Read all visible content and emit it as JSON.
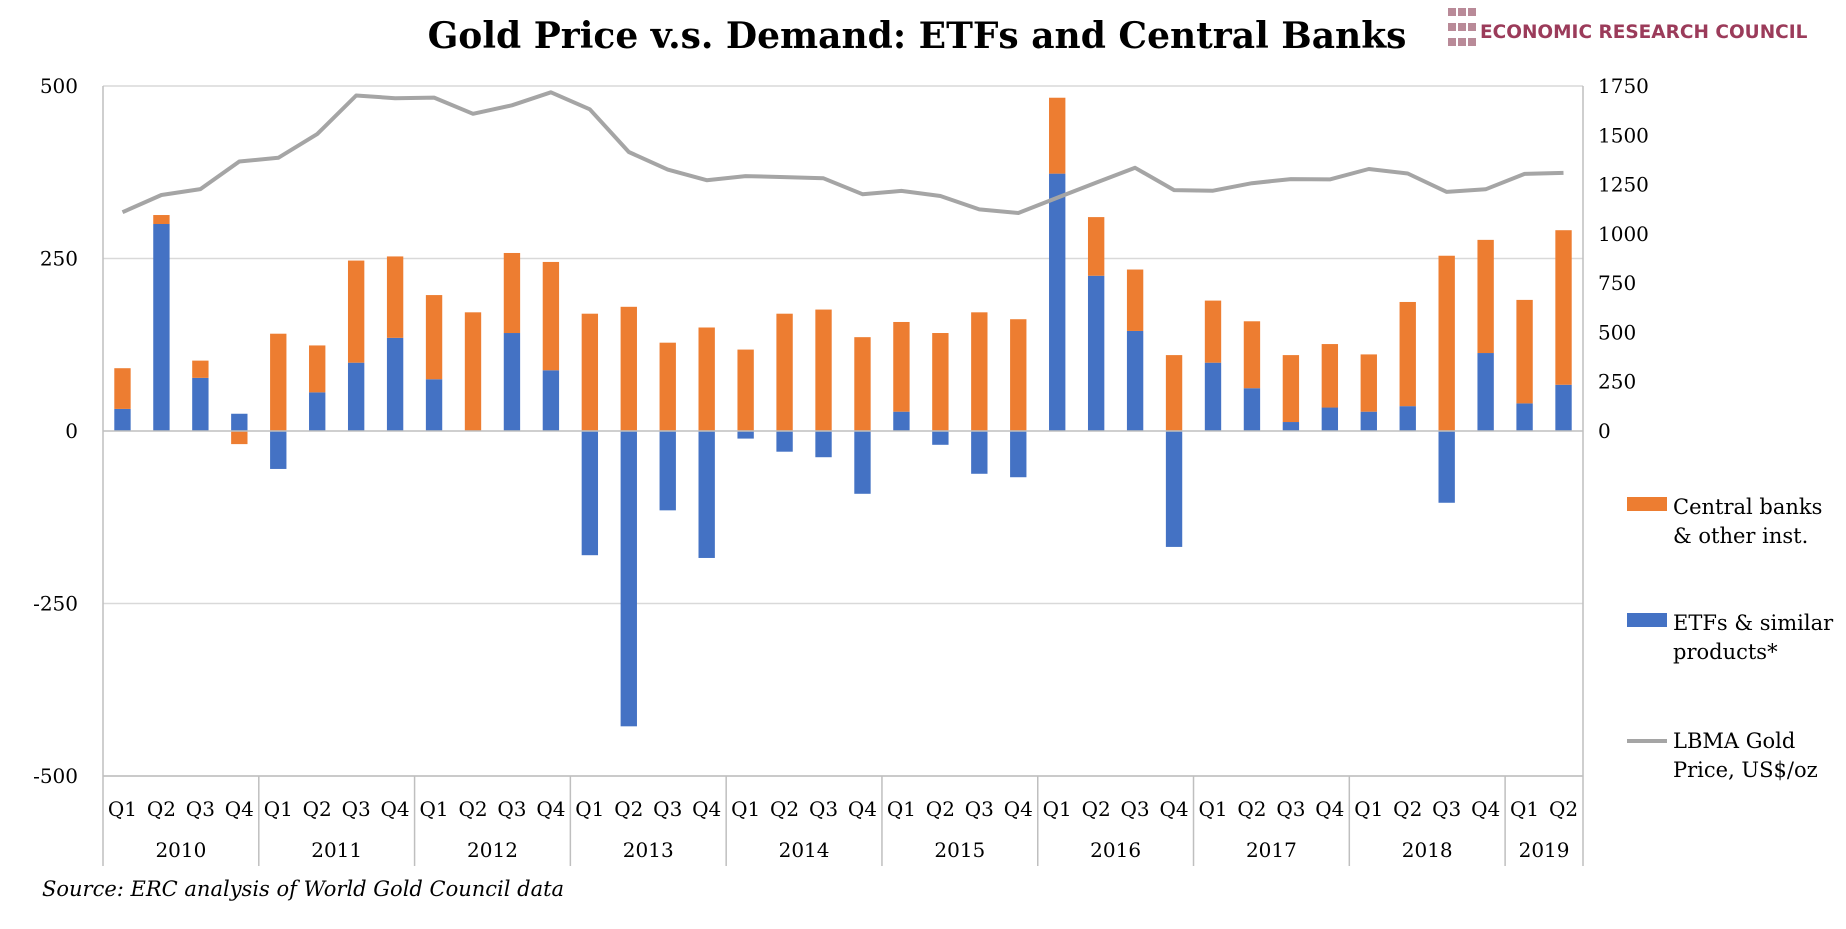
{
  "logo": {
    "text": "ECONOMIC RESEARCH COUNCIL",
    "color": "#9b3b5a",
    "dot_color": "#b98a98"
  },
  "source": "Source: ERC analysis of World Gold Council data",
  "colors": {
    "central_banks": "#ed7d31",
    "etfs": "#4472c4",
    "price": "#a5a5a5",
    "grid": "#d9d9d9",
    "axis": "#bfbfbf"
  },
  "chart_data": {
    "type": "bar",
    "stacked": true,
    "title": "Gold Price v.s. Demand: ETFs and Central Banks",
    "categories": [
      "Q1",
      "Q2",
      "Q3",
      "Q4",
      "Q1",
      "Q2",
      "Q3",
      "Q4",
      "Q1",
      "Q2",
      "Q3",
      "Q4",
      "Q1",
      "Q2",
      "Q3",
      "Q4",
      "Q1",
      "Q2",
      "Q3",
      "Q4",
      "Q1",
      "Q2",
      "Q3",
      "Q4",
      "Q1",
      "Q2",
      "Q3",
      "Q4",
      "Q1",
      "Q2",
      "Q3",
      "Q4",
      "Q1",
      "Q2",
      "Q3",
      "Q4",
      "Q1",
      "Q2"
    ],
    "years": [
      {
        "label": "2010",
        "count": 4
      },
      {
        "label": "2011",
        "count": 4
      },
      {
        "label": "2012",
        "count": 4
      },
      {
        "label": "2013",
        "count": 4
      },
      {
        "label": "2014",
        "count": 4
      },
      {
        "label": "2015",
        "count": 4
      },
      {
        "label": "2016",
        "count": 4
      },
      {
        "label": "2017",
        "count": 4
      },
      {
        "label": "2018",
        "count": 4
      },
      {
        "label": "2019",
        "count": 2
      }
    ],
    "series": [
      {
        "name": "ETFs & similar products*",
        "axis": "left",
        "kind": "bar",
        "values": [
          32,
          300,
          77,
          25,
          -55,
          56,
          99,
          135,
          75,
          0,
          142,
          88,
          -180,
          -428,
          -115,
          -184,
          -11,
          -30,
          -38,
          -91,
          28,
          -20,
          -62,
          -67,
          373,
          225,
          145,
          -168,
          99,
          62,
          13,
          34,
          28,
          36,
          -104,
          113,
          40,
          67
        ]
      },
      {
        "name": "Central banks & other inst.",
        "axis": "left",
        "kind": "bar",
        "values": [
          59,
          13,
          25,
          -19,
          141,
          68,
          148,
          118,
          122,
          172,
          116,
          157,
          170,
          180,
          128,
          150,
          118,
          170,
          176,
          136,
          130,
          142,
          172,
          162,
          110,
          85,
          89,
          110,
          90,
          97,
          97,
          92,
          83,
          151,
          254,
          164,
          150,
          224
        ]
      },
      {
        "name": "LBMA Gold Price, US$/oz",
        "axis": "right",
        "kind": "line",
        "values": [
          1110,
          1197,
          1227,
          1367,
          1386,
          1506,
          1702,
          1688,
          1691,
          1609,
          1652,
          1718,
          1632,
          1415,
          1326,
          1272,
          1293,
          1288,
          1282,
          1201,
          1218,
          1192,
          1124,
          1106,
          1183,
          1260,
          1335,
          1222,
          1219,
          1257,
          1278,
          1276,
          1329,
          1306,
          1213,
          1226,
          1304,
          1309
        ]
      }
    ],
    "legend": {
      "placement": "right",
      "entries": [
        {
          "lines": [
            "Central banks",
            "& other inst."
          ],
          "series": 1
        },
        {
          "lines": [
            "ETFs & similar",
            "products*"
          ],
          "series": 0
        },
        {
          "lines": [
            "LBMA Gold",
            "Price, US$/oz"
          ],
          "series": 2
        }
      ]
    },
    "y_left": {
      "ylim": [
        -500,
        500
      ],
      "ticks": [
        500,
        250,
        0,
        -250,
        -500
      ],
      "tick_labels": [
        "500",
        "250",
        "0",
        "-250",
        "-500"
      ]
    },
    "y_right": {
      "ylim": [
        -1750,
        1750
      ],
      "ticks": [
        1750,
        1500,
        1250,
        1000,
        750,
        500,
        250,
        0
      ],
      "tick_labels": [
        "1750",
        "1500",
        "1250",
        "1000",
        "750",
        "500",
        "250",
        "0"
      ]
    },
    "grid": true
  }
}
